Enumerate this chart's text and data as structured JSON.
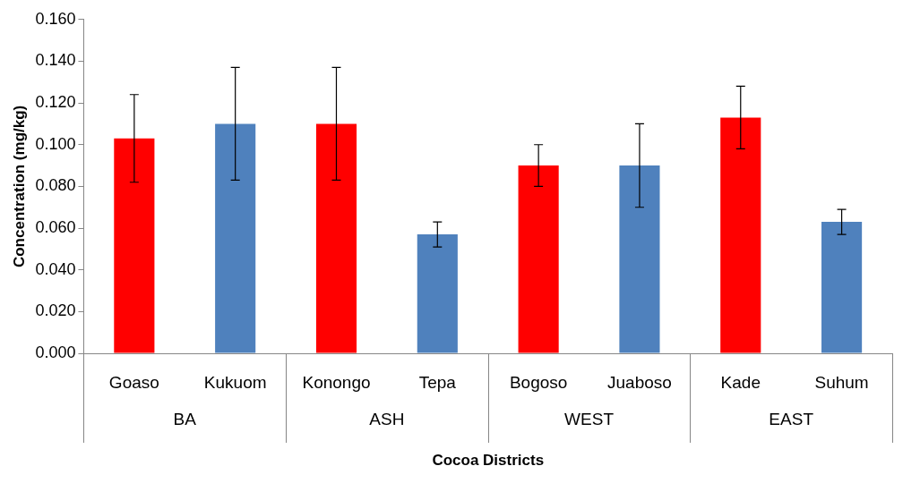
{
  "chart_data": {
    "type": "bar",
    "xlabel": "Cocoa Districts",
    "ylabel": "Concentration (mg/kg)",
    "categories": [
      "Goaso",
      "Kukuom",
      "Konongo",
      "Tepa",
      "Bogoso",
      "Juaboso",
      "Kade",
      "Suhum"
    ],
    "values": [
      0.103,
      0.11,
      0.11,
      0.057,
      0.09,
      0.09,
      0.113,
      0.063
    ],
    "errors": [
      0.021,
      0.027,
      0.027,
      0.006,
      0.01,
      0.02,
      0.015,
      0.006
    ],
    "colors": [
      "#ff0000",
      "#4f81bd",
      "#ff0000",
      "#4f81bd",
      "#ff0000",
      "#4f81bd",
      "#ff0000",
      "#4f81bd"
    ],
    "annotations": [
      "BA",
      "ASH",
      "WEST",
      "EAST"
    ],
    "ylim": [
      0,
      0.16
    ],
    "yticks": [
      {
        "value": 0,
        "label": "0.000"
      },
      {
        "value": 0.02,
        "label": "0.020"
      },
      {
        "value": 0.04,
        "label": "0.040"
      },
      {
        "value": 0.06,
        "label": "0.060"
      },
      {
        "value": 0.08,
        "label": "0.080"
      },
      {
        "value": 0.1,
        "label": "0.100"
      },
      {
        "value": 0.12,
        "label": "0.120"
      },
      {
        "value": 0.14,
        "label": "0.140"
      },
      {
        "value": 0.16,
        "label": "0.160"
      }
    ],
    "grid": false,
    "legend": false
  }
}
